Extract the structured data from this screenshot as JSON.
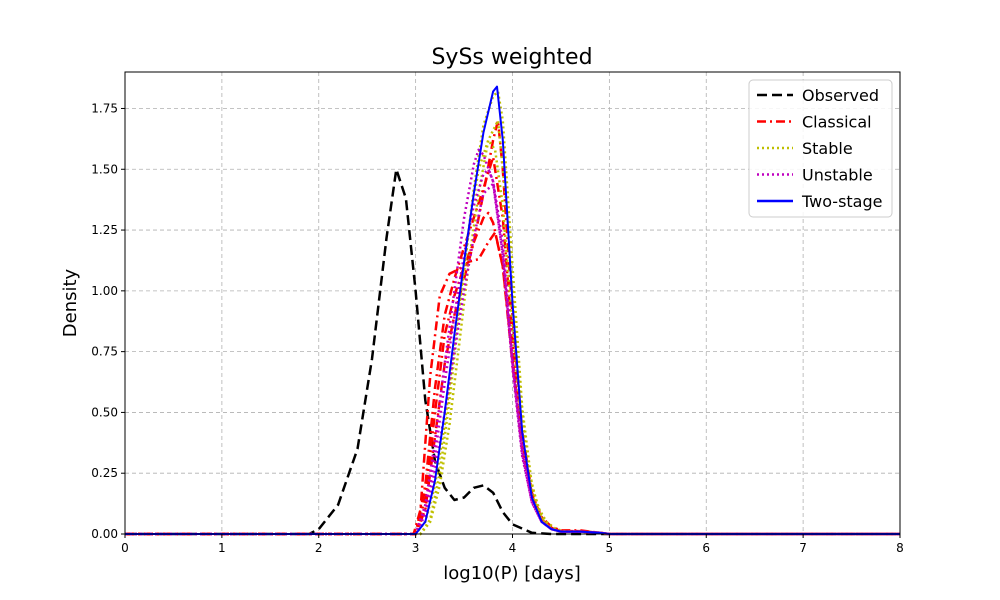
{
  "chart_data": {
    "type": "line",
    "title": "SySs weighted",
    "xlabel": "log10(P) [days]",
    "ylabel": "Density",
    "xlim": [
      0,
      8
    ],
    "ylim": [
      0,
      1.9
    ],
    "x_ticks": [
      0,
      1,
      2,
      3,
      4,
      5,
      6,
      7,
      8
    ],
    "x_tick_labels": [
      "0",
      "1",
      "2",
      "3",
      "4",
      "5",
      "6",
      "7",
      "8"
    ],
    "y_ticks": [
      0,
      0.25,
      0.5,
      0.75,
      1.0,
      1.25,
      1.5,
      1.75
    ],
    "y_tick_labels": [
      "0.00",
      "0.25",
      "0.50",
      "0.75",
      "1.00",
      "1.25",
      "1.50",
      "1.75"
    ],
    "grid": true,
    "legend_position": "top-right",
    "legend": [
      "Observed",
      "Classical",
      "Stable",
      "Unstable",
      "Two-stage"
    ],
    "series": [
      {
        "name": "Observed",
        "color": "#000000",
        "style": "dashed",
        "lines": [
          {
            "x": [
              0,
              1.9,
              2.0,
              2.2,
              2.4,
              2.55,
              2.7,
              2.8,
              2.9,
              3.0,
              3.1,
              3.2,
              3.3,
              3.4,
              3.5,
              3.6,
              3.7,
              3.8,
              3.9,
              4.0,
              4.2,
              4.4,
              8
            ],
            "y": [
              0,
              0,
              0.02,
              0.12,
              0.35,
              0.72,
              1.22,
              1.5,
              1.38,
              1.0,
              0.55,
              0.3,
              0.19,
              0.14,
              0.15,
              0.19,
              0.2,
              0.17,
              0.09,
              0.04,
              0.005,
              0,
              0
            ]
          }
        ]
      },
      {
        "name": "Classical",
        "color": "#ff0000",
        "style": "dashdot",
        "lines": [
          {
            "x": [
              0,
              2.98,
              3.05,
              3.15,
              3.25,
              3.35,
              3.45,
              3.55,
              3.65,
              3.75,
              3.82,
              3.9,
              4.0,
              4.1,
              4.2,
              4.3,
              4.4,
              4.5,
              4.7,
              4.8,
              4.9,
              5.0,
              8
            ],
            "y": [
              0,
              0,
              0.1,
              0.65,
              0.98,
              1.07,
              1.09,
              1.12,
              1.13,
              1.2,
              1.24,
              1.1,
              0.72,
              0.38,
              0.16,
              0.07,
              0.03,
              0.015,
              0.015,
              0.01,
              0.005,
              0,
              0
            ]
          },
          {
            "x": [
              0,
              3.0,
              3.1,
              3.2,
              3.3,
              3.4,
              3.5,
              3.6,
              3.7,
              3.8,
              3.9,
              4.0,
              4.1,
              4.2,
              4.3,
              4.4,
              4.5,
              4.7,
              4.9,
              5.0,
              8
            ],
            "y": [
              0,
              0,
              0.2,
              0.6,
              0.9,
              1.05,
              1.18,
              1.3,
              1.42,
              1.55,
              1.3,
              0.8,
              0.4,
              0.16,
              0.06,
              0.025,
              0.012,
              0.012,
              0.005,
              0,
              0
            ]
          },
          {
            "x": [
              0,
              3.0,
              3.1,
              3.2,
              3.3,
              3.4,
              3.5,
              3.6,
              3.7,
              3.75,
              3.8,
              3.9,
              4.0,
              4.1,
              4.2,
              4.3,
              4.4,
              4.5,
              4.7,
              4.9,
              5.0,
              8
            ],
            "y": [
              0,
              0,
              0.15,
              0.5,
              0.82,
              0.98,
              1.1,
              1.2,
              1.3,
              1.32,
              1.28,
              1.1,
              0.7,
              0.35,
              0.15,
              0.06,
              0.025,
              0.01,
              0.01,
              0.005,
              0,
              0
            ]
          },
          {
            "x": [
              0,
              3.0,
              3.1,
              3.2,
              3.3,
              3.4,
              3.5,
              3.6,
              3.7,
              3.8,
              3.85,
              3.9,
              4.0,
              4.1,
              4.2,
              4.3,
              4.4,
              4.5,
              4.7,
              4.9,
              5.0,
              8
            ],
            "y": [
              0,
              0,
              0.1,
              0.4,
              0.7,
              0.9,
              1.05,
              1.2,
              1.4,
              1.62,
              1.7,
              1.5,
              0.9,
              0.42,
              0.17,
              0.06,
              0.025,
              0.012,
              0.012,
              0.005,
              0,
              0
            ]
          }
        ]
      },
      {
        "name": "Stable",
        "color": "#bfbf00",
        "style": "dotted",
        "lines": [
          {
            "x": [
              0,
              3.0,
              3.1,
              3.2,
              3.3,
              3.4,
              3.5,
              3.6,
              3.7,
              3.8,
              3.85,
              3.9,
              4.0,
              4.1,
              4.2,
              4.3,
              4.4,
              4.5,
              4.7,
              4.9,
              5.0,
              8
            ],
            "y": [
              0,
              0,
              0.05,
              0.2,
              0.45,
              0.78,
              1.1,
              1.42,
              1.68,
              1.8,
              1.82,
              1.7,
              1.1,
              0.52,
              0.2,
              0.07,
              0.025,
              0.01,
              0.01,
              0.005,
              0,
              0
            ]
          },
          {
            "x": [
              0,
              3.05,
              3.15,
              3.25,
              3.35,
              3.45,
              3.55,
              3.65,
              3.75,
              3.82,
              3.9,
              4.0,
              4.1,
              4.2,
              4.3,
              4.4,
              4.5,
              4.7,
              4.9,
              5.0,
              8
            ],
            "y": [
              0,
              0,
              0.06,
              0.25,
              0.55,
              0.9,
              1.25,
              1.5,
              1.62,
              1.58,
              1.35,
              0.85,
              0.4,
              0.16,
              0.06,
              0.02,
              0.01,
              0.01,
              0.005,
              0,
              0
            ]
          },
          {
            "x": [
              0,
              3.05,
              3.15,
              3.25,
              3.35,
              3.45,
              3.55,
              3.65,
              3.75,
              3.85,
              3.95,
              4.05,
              4.15,
              4.25,
              4.35,
              4.45,
              4.55,
              4.7,
              4.9,
              5.0,
              8
            ],
            "y": [
              0,
              0,
              0.05,
              0.2,
              0.45,
              0.78,
              1.12,
              1.4,
              1.62,
              1.7,
              1.3,
              0.7,
              0.3,
              0.12,
              0.05,
              0.02,
              0.01,
              0.01,
              0.005,
              0,
              0
            ]
          }
        ]
      },
      {
        "name": "Unstable",
        "color": "#bf00bf",
        "style": "dotted",
        "lines": [
          {
            "x": [
              0,
              3.0,
              3.1,
              3.2,
              3.3,
              3.4,
              3.5,
              3.6,
              3.65,
              3.7,
              3.8,
              3.9,
              4.0,
              4.1,
              4.2,
              4.3,
              4.4,
              4.5,
              4.7,
              4.9,
              5.0,
              8
            ],
            "y": [
              0,
              0,
              0.12,
              0.38,
              0.7,
              1.0,
              1.3,
              1.52,
              1.58,
              1.56,
              1.45,
              1.2,
              0.72,
              0.35,
              0.14,
              0.05,
              0.02,
              0.01,
              0.01,
              0.005,
              0,
              0
            ]
          },
          {
            "x": [
              0,
              3.0,
              3.1,
              3.2,
              3.3,
              3.4,
              3.5,
              3.6,
              3.7,
              3.75,
              3.8,
              3.9,
              4.0,
              4.1,
              4.2,
              4.3,
              4.4,
              4.5,
              4.7,
              4.9,
              5.0,
              8
            ],
            "y": [
              0,
              0,
              0.1,
              0.32,
              0.62,
              0.9,
              1.15,
              1.35,
              1.48,
              1.5,
              1.45,
              1.15,
              0.7,
              0.33,
              0.13,
              0.05,
              0.02,
              0.01,
              0.01,
              0.005,
              0,
              0
            ]
          },
          {
            "x": [
              0,
              3.0,
              3.1,
              3.2,
              3.3,
              3.4,
              3.5,
              3.6,
              3.7,
              3.8,
              3.9,
              4.0,
              4.1,
              4.2,
              4.3,
              4.4,
              4.5,
              4.7,
              4.9,
              5.0,
              8
            ],
            "y": [
              0,
              0,
              0.08,
              0.26,
              0.5,
              0.75,
              1.0,
              1.22,
              1.4,
              1.44,
              1.15,
              0.68,
              0.32,
              0.13,
              0.05,
              0.02,
              0.01,
              0.01,
              0.005,
              0,
              0
            ]
          }
        ]
      },
      {
        "name": "Two-stage",
        "color": "#0000ff",
        "style": "solid",
        "lines": [
          {
            "x": [
              0,
              3.0,
              3.1,
              3.2,
              3.3,
              3.4,
              3.5,
              3.6,
              3.7,
              3.8,
              3.84,
              3.9,
              4.0,
              4.1,
              4.2,
              4.3,
              4.4,
              4.5,
              4.7,
              4.9,
              5.0,
              8
            ],
            "y": [
              0,
              0,
              0.05,
              0.22,
              0.5,
              0.82,
              1.12,
              1.4,
              1.65,
              1.82,
              1.84,
              1.62,
              0.95,
              0.42,
              0.15,
              0.05,
              0.02,
              0.01,
              0.01,
              0.005,
              0,
              0
            ]
          }
        ]
      }
    ]
  }
}
